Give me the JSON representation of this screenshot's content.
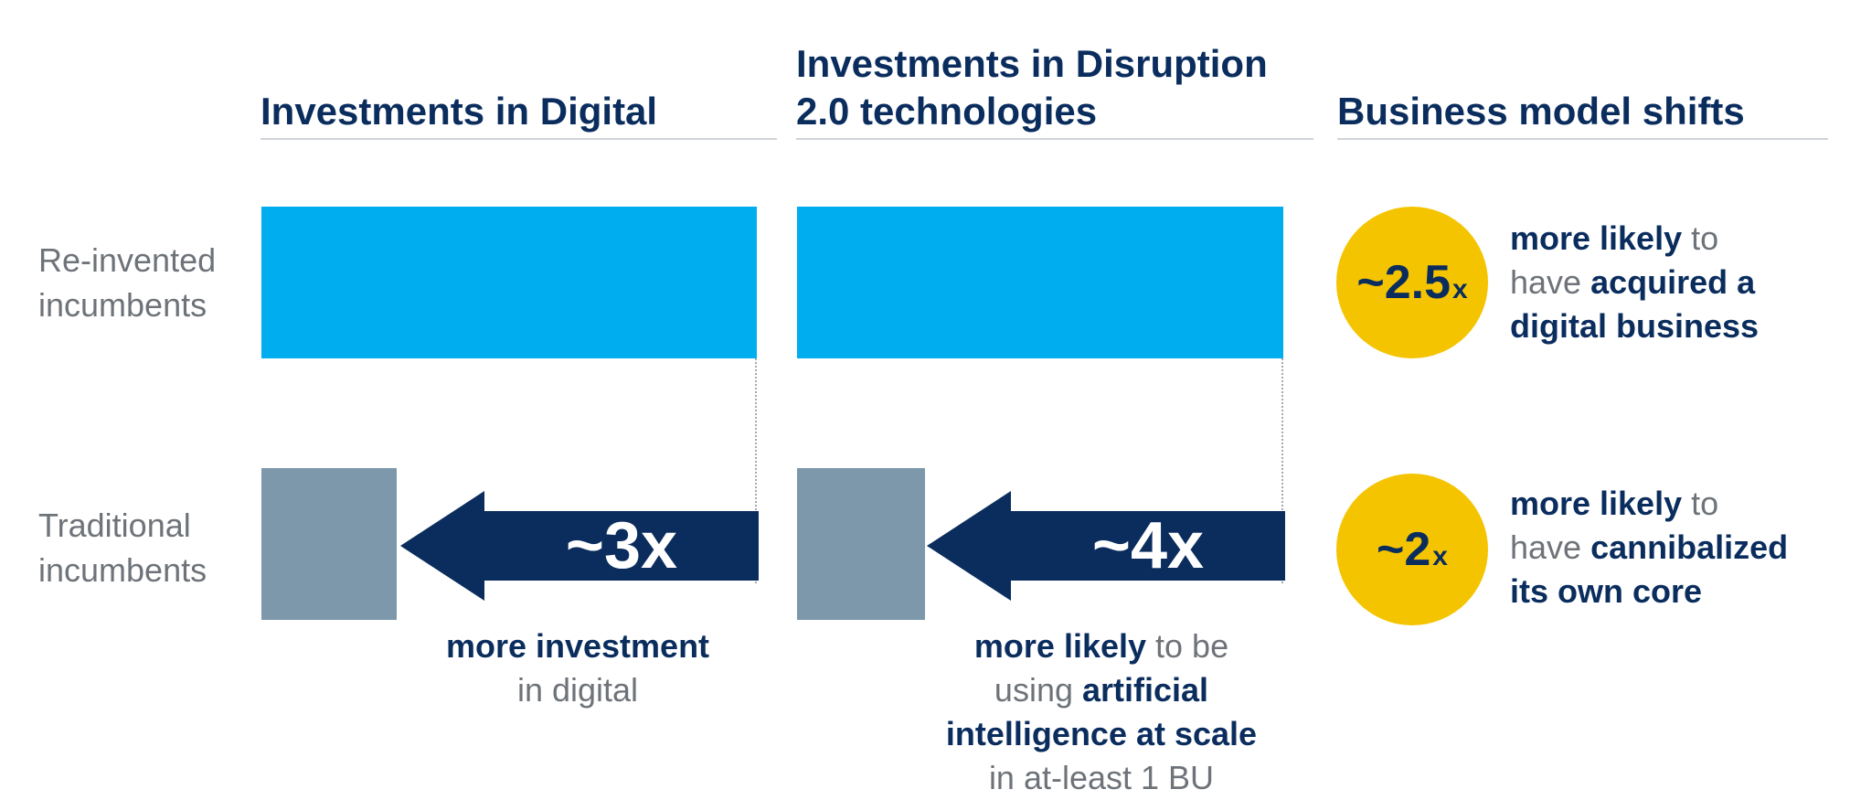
{
  "columns": {
    "digital": {
      "title": "Investments in Digital"
    },
    "disruption": {
      "title_line1": "Investments in Disruption",
      "title_line2": "2.0 technologies"
    },
    "business": {
      "title": "Business model shifts"
    }
  },
  "rows": {
    "reinvented": {
      "line1": "Re-invented",
      "line2": "incumbents"
    },
    "traditional": {
      "line1": "Traditional",
      "line2": "incumbents"
    }
  },
  "digital_arrow": {
    "label": "~3x"
  },
  "digital_caption": {
    "bold": "more investment",
    "rest": "in digital"
  },
  "disruption_arrow": {
    "label": "~4x"
  },
  "disruption_caption": {
    "p1_bold": "more likely",
    "p1_rest": " to be",
    "p2_plain": "using ",
    "p2_bold": "artificial",
    "p3_bold": "intelligence at scale",
    "p4": "in at-least 1 BU"
  },
  "shift_1": {
    "num": "~2.5",
    "x": "x",
    "l1_bold": "more likely",
    "l1_rest": " to",
    "l2_plain": "have ",
    "l2_bold": "acquired a",
    "l3_bold": "digital business"
  },
  "shift_2": {
    "num": "~2",
    "x": "x",
    "l1_bold": "more likely",
    "l1_rest": " to",
    "l2_plain": "have ",
    "l2_bold": "cannibalized",
    "l3_bold": "its own core"
  },
  "colors": {
    "navy": "#0a2d5e",
    "blue": "#00aeef",
    "slate": "#7d98ab",
    "yellow": "#f5c400",
    "gray_text": "#6e7379"
  },
  "chart_data": {
    "type": "bar",
    "categories": [
      "Re-invented incumbents",
      "Traditional incumbents"
    ],
    "series": [
      {
        "name": "Investments in Digital",
        "relative_values": [
          3,
          1
        ],
        "multiplier_label": "~3x"
      },
      {
        "name": "Investments in Disruption 2.0 technologies",
        "relative_values": [
          4,
          1
        ],
        "multiplier_label": "~4x"
      }
    ],
    "business_model_shifts": [
      {
        "multiplier": "~2.5x",
        "text": "more likely to have acquired a digital business"
      },
      {
        "multiplier": "~2x",
        "text": "more likely to have cannibalized its own core"
      }
    ]
  }
}
